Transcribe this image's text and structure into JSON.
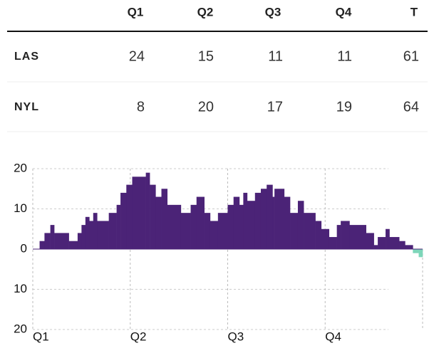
{
  "table": {
    "header": [
      "Q1",
      "Q2",
      "Q3",
      "Q4",
      "T"
    ],
    "rows": [
      [
        "LAS",
        "24",
        "15",
        "11",
        "11",
        "61"
      ],
      [
        "NYL",
        "8",
        "20",
        "17",
        "19",
        "64"
      ]
    ]
  },
  "chart_data": {
    "type": "step-area",
    "x": [
      0,
      0.7,
      1.2,
      1.8,
      2.2,
      3.7,
      4.6,
      5.0,
      5.4,
      5.8,
      6.2,
      6.6,
      7.8,
      8.6,
      9.0,
      9.6,
      10.2,
      11.6,
      12.0,
      12.6,
      13.2,
      13.8,
      15.2,
      16.2,
      16.8,
      17.6,
      18.2,
      19.0,
      20.0,
      20.6,
      21.2,
      21.6,
      22.0,
      22.8,
      23.4,
      24.0,
      24.6,
      24.8,
      25.8,
      26.4,
      27.2,
      27.8,
      29.0,
      29.6,
      30.4,
      31.2,
      31.6,
      32.5,
      34.2,
      35.0,
      35.4,
      36.2,
      36.6,
      37.6,
      38.2,
      39.0,
      39.6
    ],
    "values": [
      0,
      2,
      4,
      6,
      4,
      2,
      4,
      6,
      8,
      7,
      9,
      7,
      9,
      11,
      14,
      16,
      18,
      19,
      16,
      13,
      15,
      11,
      9,
      11,
      13,
      9,
      7,
      9,
      11,
      13,
      11,
      14,
      12,
      14,
      15,
      16,
      13,
      15,
      13,
      9,
      12,
      9,
      7,
      5,
      3,
      6,
      7,
      6,
      4,
      1,
      3,
      5,
      3,
      2,
      1,
      -1,
      -2
    ],
    "positive_color": "#4b2377",
    "negative_color": "#7dd6b9",
    "xlim": [
      0,
      40
    ],
    "xticks": [
      {
        "value": 0,
        "label": "Q1"
      },
      {
        "value": 10,
        "label": "Q2"
      },
      {
        "value": 20,
        "label": "Q3"
      },
      {
        "value": 30,
        "label": "Q4"
      }
    ],
    "ylim": [
      -20,
      20
    ],
    "yticks": [
      {
        "value": 20,
        "label": "20"
      },
      {
        "value": 10,
        "label": "10"
      },
      0,
      {
        "value": -10,
        "label": "10"
      },
      {
        "value": -20,
        "label": "20"
      }
    ],
    "grid": true
  }
}
